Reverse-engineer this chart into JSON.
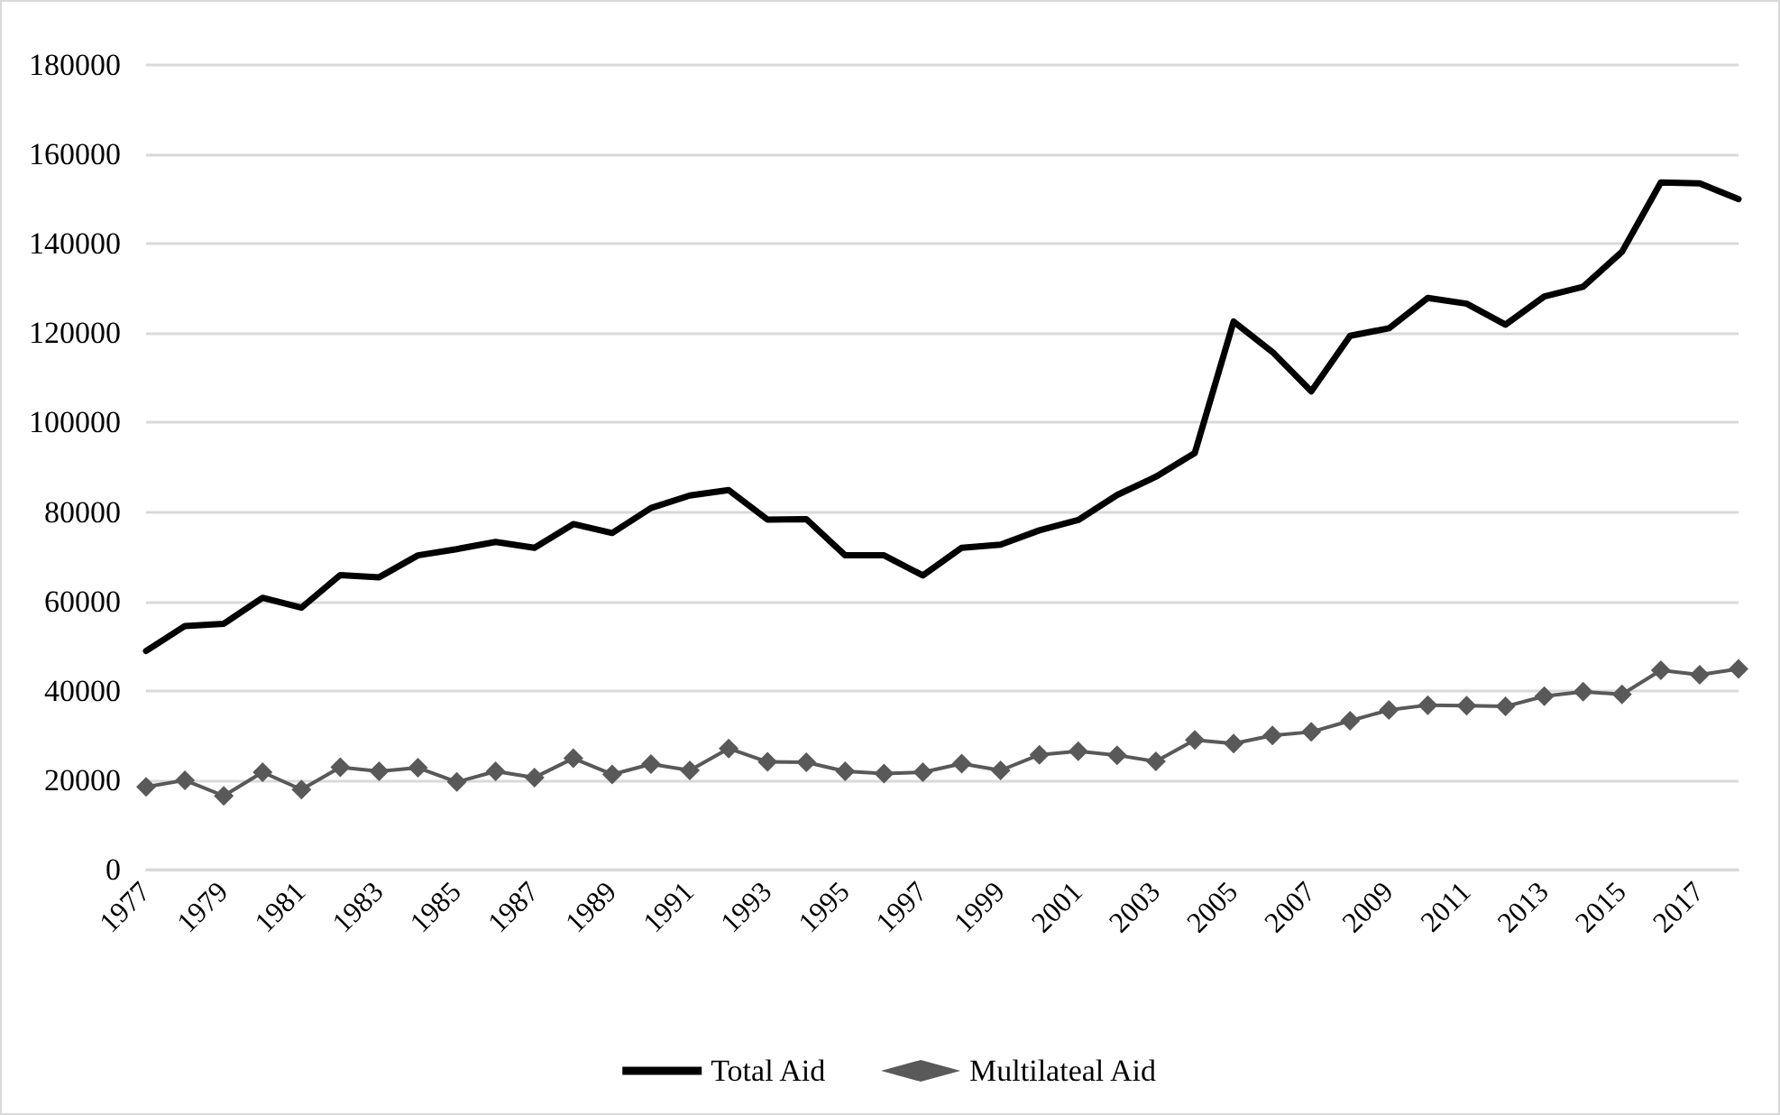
{
  "chart_data": {
    "type": "line",
    "categories": [
      "1977",
      null,
      "1979",
      null,
      "1981",
      null,
      "1983",
      null,
      "1985",
      null,
      "1987",
      null,
      "1989",
      null,
      "1991",
      null,
      "1993",
      null,
      "1995",
      null,
      "1997",
      null,
      "1999",
      null,
      "2001",
      null,
      "2003",
      null,
      "2005",
      null,
      "2007",
      null,
      "2009",
      null,
      "2011",
      null,
      "2013",
      null,
      "2015",
      null,
      "2017",
      null
    ],
    "series": [
      {
        "name": "Total Aid",
        "color": "#000000",
        "marker": "none",
        "values": [
          48900,
          54500,
          55000,
          60800,
          58600,
          65900,
          65400,
          70300,
          71700,
          73300,
          72000,
          77300,
          75300,
          80900,
          83700,
          84900,
          78300,
          78400,
          70300,
          70300,
          65800,
          72000,
          72700,
          75900,
          78200,
          83800,
          87900,
          93200,
          122600,
          115800,
          107000,
          119400,
          121100,
          127900,
          126600,
          121900,
          128200,
          130400,
          138200,
          153700,
          153500,
          150000
        ]
      },
      {
        "name": "Multilateal Aid",
        "color": "#595959",
        "marker": "diamond",
        "values": [
          18500,
          20000,
          16500,
          21800,
          17900,
          22900,
          22000,
          22800,
          19600,
          22000,
          20600,
          24900,
          21300,
          23600,
          22200,
          27100,
          24100,
          24000,
          22000,
          21500,
          21800,
          23700,
          22200,
          25700,
          26500,
          25600,
          24200,
          29000,
          28200,
          30000,
          30800,
          33300,
          35700,
          36800,
          36700,
          36500,
          38800,
          39800,
          39200,
          44600,
          43600,
          44900
        ]
      }
    ],
    "ylim": [
      0,
      180000
    ],
    "yticks": [
      0,
      20000,
      40000,
      60000,
      80000,
      100000,
      120000,
      140000,
      160000,
      180000
    ],
    "grid": "y",
    "legend": "bottom"
  }
}
